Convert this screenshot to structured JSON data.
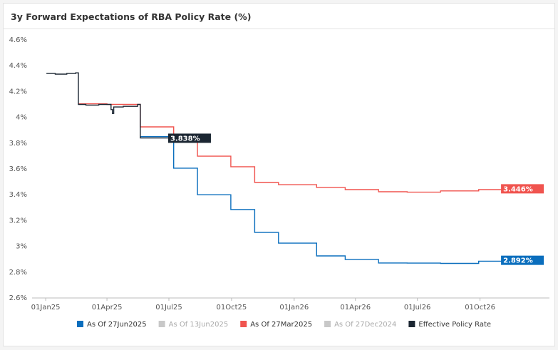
{
  "chart_data": {
    "type": "step-line",
    "title": "3y Forward Expectations of RBA Policy Rate (%)",
    "xlim": [
      "2024-12-12",
      "2027-01-11"
    ],
    "xticks": [
      {
        "value": "2025-01-01",
        "label": "01Jan25"
      },
      {
        "value": "2025-04-01",
        "label": "01Apr25"
      },
      {
        "value": "2025-07-01",
        "label": "01Jul25"
      },
      {
        "value": "2025-10-01",
        "label": "01Oct25"
      },
      {
        "value": "2026-01-01",
        "label": "01Jan26"
      },
      {
        "value": "2026-04-01",
        "label": "01Apr26"
      },
      {
        "value": "2026-07-01",
        "label": "01Jul26"
      },
      {
        "value": "2026-10-01",
        "label": "01Oct26"
      }
    ],
    "ylim": [
      2.6,
      4.6
    ],
    "yticks": [
      {
        "value": 4.6,
        "label": "4.6%"
      },
      {
        "value": 4.4,
        "label": "4.4%"
      },
      {
        "value": 4.2,
        "label": "4.2%"
      },
      {
        "value": 4,
        "label": "4%"
      },
      {
        "value": 3.8,
        "label": "3.8%"
      },
      {
        "value": 3.6,
        "label": "3.6%"
      },
      {
        "value": 3.4,
        "label": "3.4%"
      },
      {
        "value": 3.2,
        "label": "3.2%"
      },
      {
        "value": 3,
        "label": "3%"
      },
      {
        "value": 2.8,
        "label": "2.8%"
      },
      {
        "value": 2.6,
        "label": "2.6%"
      }
    ],
    "grid": false,
    "series": [
      {
        "name": "As Of 27Jun2025",
        "color": "#0a6ebd",
        "visible": true,
        "x": [
          "2025-05-20",
          "2025-07-08",
          "2025-08-12",
          "2025-09-30",
          "2025-11-04",
          "2025-12-09",
          "2026-02-03",
          "2026-03-17",
          "2026-05-05",
          "2026-06-16",
          "2026-08-04",
          "2026-09-29",
          "2026-11-03"
        ],
        "values": [
          3.85,
          3.606,
          3.4,
          3.285,
          3.108,
          3.025,
          2.926,
          2.898,
          2.871,
          2.87,
          2.868,
          2.885,
          2.892
        ],
        "last_label": "2.892%"
      },
      {
        "name": "As Of 13Jun2025",
        "color": "#c8c8c8",
        "visible": false
      },
      {
        "name": "As Of 27Mar2025",
        "color": "#f0544f",
        "visible": true,
        "x": [
          "2025-02-18",
          "2025-04-01",
          "2025-05-20",
          "2025-07-08",
          "2025-08-12",
          "2025-09-30",
          "2025-11-04",
          "2025-12-09",
          "2026-02-03",
          "2026-03-17",
          "2026-05-05",
          "2026-06-16",
          "2026-08-04",
          "2026-09-29",
          "2026-11-03"
        ],
        "values": [
          4.105,
          4.1,
          3.926,
          3.84,
          3.699,
          3.617,
          3.495,
          3.478,
          3.456,
          3.44,
          3.423,
          3.42,
          3.43,
          3.44,
          3.446
        ],
        "last_label": "3.446%"
      },
      {
        "name": "As Of 27Dec2024",
        "color": "#c8c8c8",
        "visible": false
      },
      {
        "name": "Effective Policy Rate",
        "color": "#1b2632",
        "visible": true,
        "x": [
          "2025-01-02",
          "2025-01-15",
          "2025-02-01",
          "2025-02-14",
          "2025-02-18",
          "2025-03-01",
          "2025-03-20",
          "2025-04-07",
          "2025-04-09",
          "2025-04-11",
          "2025-04-25",
          "2025-05-16",
          "2025-05-20",
          "2025-06-10",
          "2025-07-02"
        ],
        "values": [
          4.34,
          4.335,
          4.34,
          4.345,
          4.1,
          4.095,
          4.1,
          4.06,
          4.03,
          4.08,
          4.085,
          4.1,
          3.84,
          3.84,
          3.838
        ],
        "last_label": "3.838%"
      }
    ]
  }
}
